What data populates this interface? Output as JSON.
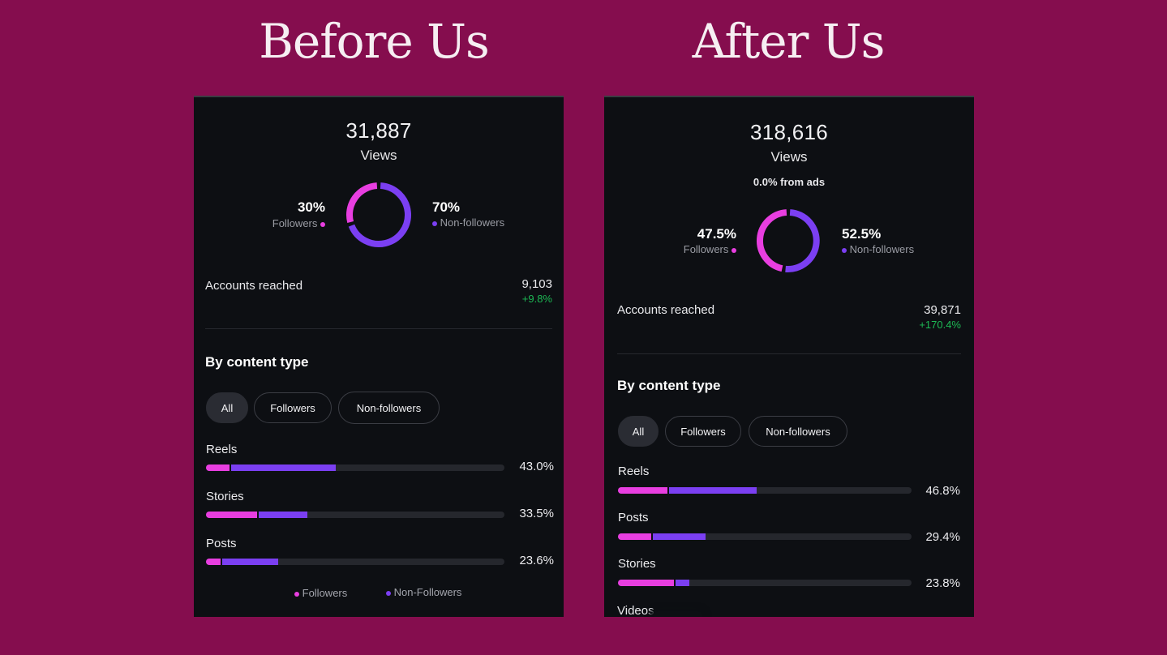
{
  "headings": {
    "before": "Before Us",
    "after": "After Us"
  },
  "colors": {
    "background": "#850d4e",
    "followers": "#e83ee0",
    "non_followers": "#7b3ff2",
    "positive": "#1db954"
  },
  "before": {
    "views": "31,887",
    "views_label": "Views",
    "followers_pct": "30%",
    "followers_label": "Followers",
    "followers_fraction": 0.3,
    "nonfollowers_pct": "70%",
    "nonfollowers_label": "Non-followers",
    "accounts_label": "Accounts reached",
    "accounts_value": "9,103",
    "accounts_change": "+9.8%",
    "section_title": "By content type",
    "pills": [
      "All",
      "Followers",
      "Non-followers"
    ],
    "rows": [
      {
        "label": "Reels",
        "value": "43.0%",
        "followers": 0.08,
        "nonfollowers": 0.35
      },
      {
        "label": "Stories",
        "value": "33.5%",
        "followers": 0.17,
        "nonfollowers": 0.165
      },
      {
        "label": "Posts",
        "value": "23.6%",
        "followers": 0.05,
        "nonfollowers": 0.186
      }
    ],
    "legend": {
      "followers": "Followers",
      "nonfollowers": "Non-Followers"
    }
  },
  "after": {
    "views": "318,616",
    "views_label": "Views",
    "ads_note": "0.0% from ads",
    "followers_pct": "47.5%",
    "followers_label": "Followers",
    "followers_fraction": 0.475,
    "nonfollowers_pct": "52.5%",
    "nonfollowers_label": "Non-followers",
    "accounts_label": "Accounts reached",
    "accounts_value": "39,871",
    "accounts_change": "+170.4%",
    "section_title": "By content type",
    "pills": [
      "All",
      "Followers",
      "Non-followers"
    ],
    "rows": [
      {
        "label": "Reels",
        "value": "46.8%",
        "followers": 0.168,
        "nonfollowers": 0.3
      },
      {
        "label": "Posts",
        "value": "29.4%",
        "followers": 0.114,
        "nonfollowers": 0.18
      },
      {
        "label": "Stories",
        "value": "23.8%",
        "followers": 0.19,
        "nonfollowers": 0.048
      }
    ],
    "partial_row": "Videos"
  }
}
